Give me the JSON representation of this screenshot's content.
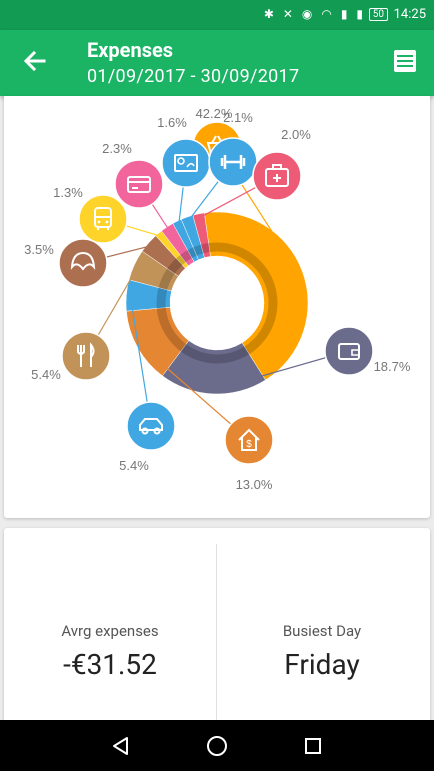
{
  "status_bar": {
    "time": "14:25",
    "battery": "50"
  },
  "header": {
    "title": "Expenses",
    "date_range": "01/09/2017 - 30/09/2017"
  },
  "chart_data": {
    "type": "pie",
    "categories": [
      "Groceries",
      "Household",
      "Cars",
      "Food",
      "Bakery",
      "Transport",
      "Shopping",
      "Bills",
      "Tickets",
      "Sport",
      "Health"
    ],
    "values": [
      42.2,
      18.7,
      13.0,
      5.4,
      5.4,
      3.5,
      1.3,
      2.3,
      1.6,
      2.1,
      2.0
    ],
    "labels": [
      "42.2%",
      "18.7%",
      "13.0%",
      "5.4%",
      "5.4%",
      "3.5%",
      "1.3%",
      "2.3%",
      "1.6%",
      "2.1%",
      "2.0%"
    ],
    "colors": [
      "#ffa400",
      "#6b6b8c",
      "#e58632",
      "#41a7e3",
      "#c29358",
      "#ac6f4f",
      "#ffd42a",
      "#f2649c",
      "#41a7e3",
      "#41a7e3",
      "#ee5b76"
    ],
    "icons": [
      "basket-icon",
      "wallet-icon",
      "house-icon",
      "car-icon",
      "cutlery-icon",
      "croissant-icon",
      "bus-icon",
      "card-icon",
      "cheque-icon",
      "dumbbell-icon",
      "first-aid-icon"
    ]
  },
  "stats": {
    "avg_label": "Avrg expenses",
    "avg_value": "-€31.52",
    "busiest_label": "Busiest Day",
    "busiest_value": "Friday"
  }
}
